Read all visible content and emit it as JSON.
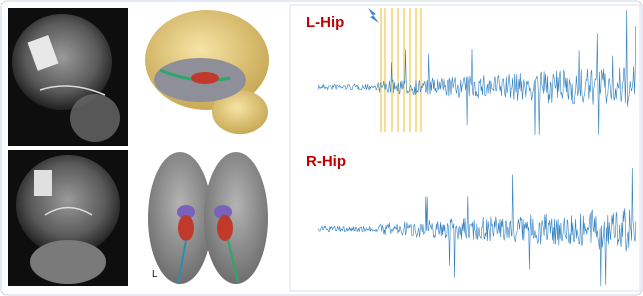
{
  "panels": {
    "top_trace_label": "L-Hip",
    "bottom_trace_label": "R-Hip",
    "brain_side_label": "L"
  }
}
